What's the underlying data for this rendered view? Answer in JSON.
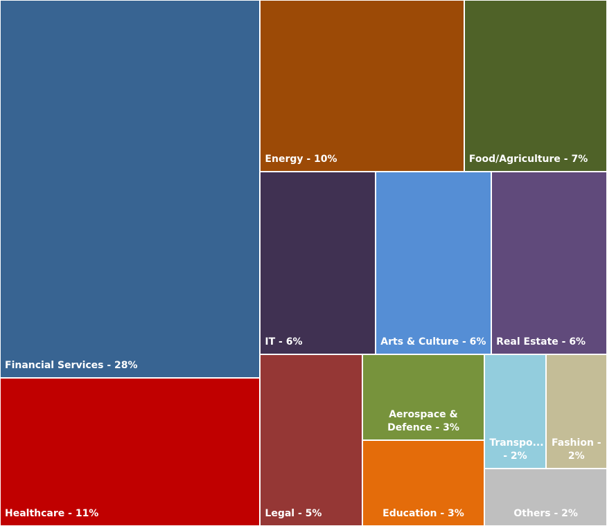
{
  "chart_data": {
    "type": "treemap",
    "value_labels": [
      "Financial Services - 28%",
      "Healthcare - 11%",
      "Energy - 10%",
      "Food/Agriculture - 7%",
      "IT - 6%",
      "Arts & Culture - 6%",
      "Real Estate - 6%",
      "Legal - 5%",
      "Aerospace & Defence - 3%",
      "Education - 3%",
      "Transpo... - 2%",
      "Fashion - 2%",
      "Others - 2%"
    ],
    "values": [
      28,
      11,
      10,
      7,
      6,
      6,
      6,
      5,
      3,
      3,
      2,
      2,
      2
    ],
    "colors": [
      "#386492",
      "#c00000",
      "#9c4a06",
      "#4f6228",
      "#403152",
      "#558ed5",
      "#604a7b",
      "#953735",
      "#77933c",
      "#e46c0a",
      "#93cddd",
      "#c4bd97",
      "#bfbfbf"
    ]
  }
}
